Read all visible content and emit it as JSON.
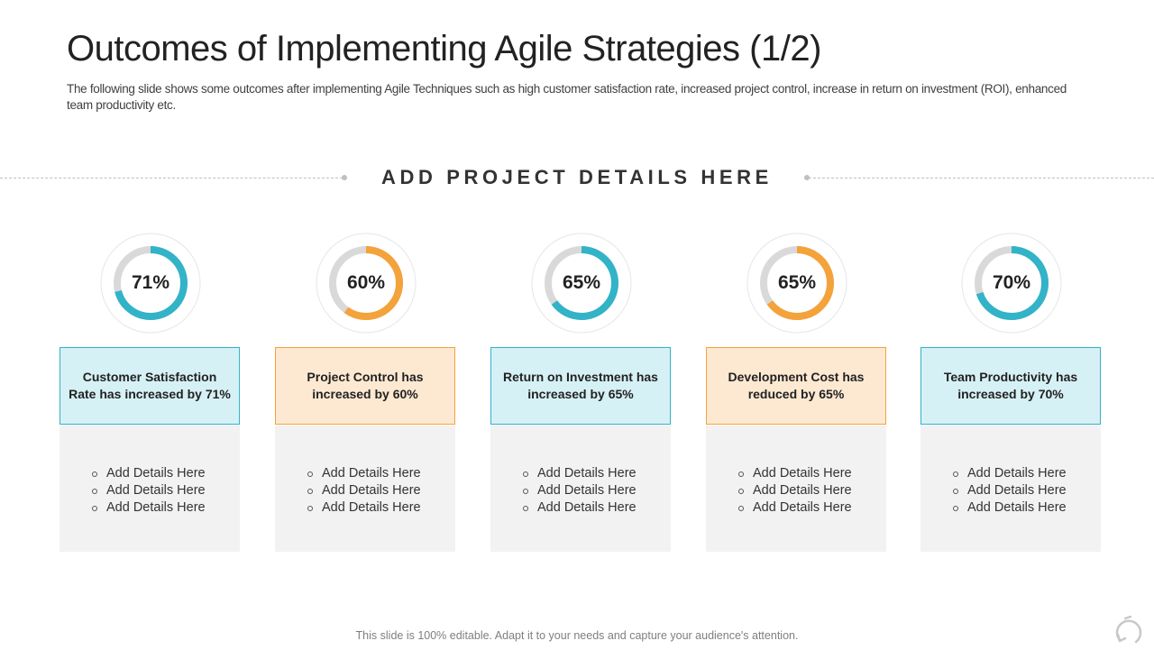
{
  "slide": {
    "title": "Outcomes of Implementing Agile Strategies (1/2)",
    "subtitle": "The following slide shows some outcomes after implementing Agile Techniques such as high customer satisfaction rate, increased project control, increase in return on investment (ROI), enhanced team productivity etc.",
    "section_heading": "ADD PROJECT DETAILS HERE",
    "footer": "This slide is 100% editable. Adapt it to your needs and capture your audience's attention."
  },
  "colors": {
    "teal": "#32b3c7",
    "orange": "#f4a23a",
    "ring_track": "#d9d9d9",
    "teal_box": "#d6f1f5",
    "orange_box": "#fde9d2"
  },
  "cards": [
    {
      "percent_label": "71%",
      "percent": 71,
      "color": "teal",
      "headline": "Customer Satisfaction Rate has increased by 71%",
      "details": [
        "Add Details Here",
        "Add Details Here",
        "Add Details Here"
      ]
    },
    {
      "percent_label": "60%",
      "percent": 60,
      "color": "orange",
      "headline": "Project Control has increased by 60%",
      "details": [
        "Add Details Here",
        "Add Details Here",
        "Add Details Here"
      ]
    },
    {
      "percent_label": "65%",
      "percent": 65,
      "color": "teal",
      "headline": "Return on Investment has increased by 65%",
      "details": [
        "Add Details Here",
        "Add Details Here",
        "Add Details Here"
      ]
    },
    {
      "percent_label": "65%",
      "percent": 65,
      "color": "orange",
      "headline": "Development Cost has reduced by 65%",
      "details": [
        "Add Details Here",
        "Add Details Here",
        "Add Details Here"
      ]
    },
    {
      "percent_label": "70%",
      "percent": 70,
      "color": "teal",
      "headline": "Team Productivity has increased by 70%",
      "details": [
        "Add Details Here",
        "Add Details Here",
        "Add Details Here"
      ]
    }
  ],
  "icons": {
    "corner_logo": "refresh-cycle-icon"
  }
}
